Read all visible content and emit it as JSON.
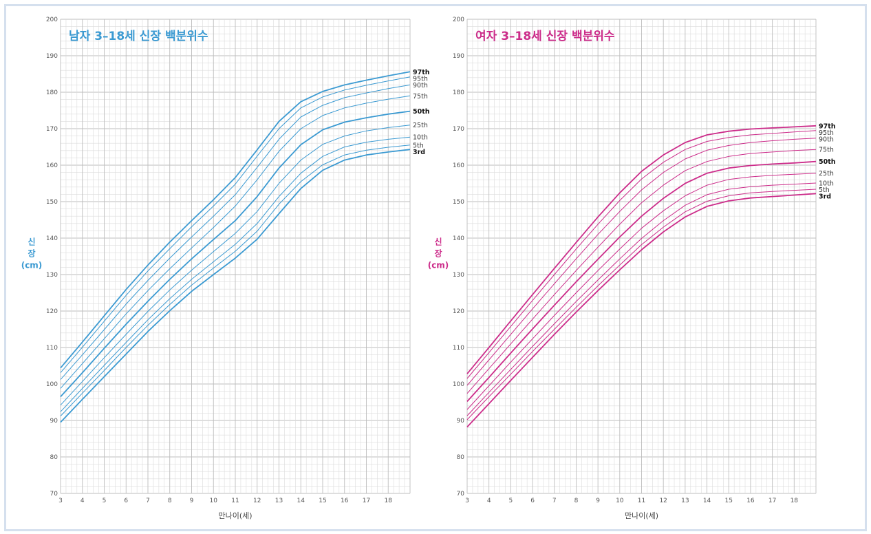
{
  "chart_data": [
    {
      "type": "line",
      "title": "남자 3–18세 신장 백분위수",
      "color": "#3b9ad2",
      "ylabel_lines": [
        "신",
        "장",
        "(cm)"
      ],
      "xlabel": "만나이(세)",
      "xlim": [
        3,
        19
      ],
      "ylim": [
        70,
        200
      ],
      "xticks": [
        3,
        4,
        5,
        6,
        7,
        8,
        9,
        10,
        11,
        12,
        13,
        14,
        15,
        16,
        17,
        18
      ],
      "yticks": [
        70,
        80,
        90,
        100,
        110,
        120,
        130,
        140,
        150,
        160,
        170,
        180,
        190,
        200
      ],
      "grid": true,
      "x": [
        3,
        4,
        5,
        6,
        7,
        8,
        9,
        10,
        11,
        12,
        13,
        14,
        15,
        16,
        17,
        18,
        19
      ],
      "series": [
        {
          "name": "97th",
          "bold": true,
          "values": [
            104.4,
            111.5,
            118.7,
            125.9,
            132.6,
            138.9,
            144.8,
            150.5,
            156.6,
            164.2,
            172.0,
            177.4,
            180.2,
            182.0,
            183.3,
            184.5,
            185.6
          ]
        },
        {
          "name": "95th",
          "bold": false,
          "values": [
            103.1,
            110.1,
            117.2,
            124.3,
            131.0,
            137.1,
            143.1,
            148.8,
            154.8,
            162.5,
            170.0,
            175.7,
            178.7,
            180.6,
            181.9,
            183.1,
            184.2
          ]
        },
        {
          "name": "90th",
          "bold": false,
          "values": [
            101.2,
            108.0,
            114.9,
            121.9,
            128.4,
            134.5,
            140.3,
            146.0,
            151.9,
            159.4,
            167.1,
            173.2,
            176.4,
            178.5,
            179.8,
            181.0,
            182.0
          ]
        },
        {
          "name": "75th",
          "bold": false,
          "values": [
            98.8,
            105.6,
            112.4,
            119.2,
            125.6,
            131.6,
            137.3,
            142.9,
            148.8,
            156.0,
            163.8,
            170.0,
            173.6,
            175.7,
            177.0,
            178.1,
            179.0
          ]
        },
        {
          "name": "50th",
          "bold": true,
          "values": [
            96.5,
            103.1,
            109.8,
            116.4,
            122.7,
            128.7,
            134.3,
            139.6,
            144.8,
            151.4,
            159.2,
            165.6,
            169.7,
            171.8,
            173.0,
            174.0,
            174.8
          ]
        },
        {
          "name": "25th",
          "bold": false,
          "values": [
            94.2,
            100.7,
            107.2,
            113.6,
            119.9,
            125.8,
            131.2,
            136.3,
            141.3,
            147.3,
            155.0,
            161.4,
            165.7,
            168.0,
            169.4,
            170.3,
            171.0
          ]
        },
        {
          "name": "10th",
          "bold": false,
          "values": [
            92.4,
            98.8,
            105.1,
            111.4,
            117.6,
            123.4,
            128.7,
            133.5,
            138.3,
            144.0,
            151.4,
            157.8,
            162.4,
            165.0,
            166.3,
            167.1,
            167.7
          ]
        },
        {
          "name": "5th",
          "bold": false,
          "values": [
            91.2,
            97.5,
            103.7,
            110.0,
            116.1,
            121.8,
            127.1,
            131.8,
            136.4,
            141.9,
            149.3,
            155.5,
            160.1,
            162.8,
            164.1,
            164.9,
            165.5
          ]
        },
        {
          "name": "3rd",
          "bold": true,
          "values": [
            89.5,
            95.8,
            102.0,
            108.2,
            114.4,
            120.1,
            125.4,
            130.0,
            134.5,
            139.7,
            146.7,
            153.6,
            158.6,
            161.4,
            162.8,
            163.6,
            164.3
          ]
        }
      ]
    },
    {
      "type": "line",
      "title": "여자 3–18세 신장 백분위수",
      "color": "#cc2c8a",
      "ylabel_lines": [
        "신",
        "장",
        "(cm)"
      ],
      "xlabel": "만나이(세)",
      "xlim": [
        3,
        19
      ],
      "ylim": [
        70,
        200
      ],
      "xticks": [
        3,
        4,
        5,
        6,
        7,
        8,
        9,
        10,
        11,
        12,
        13,
        14,
        15,
        16,
        17,
        18
      ],
      "yticks": [
        70,
        80,
        90,
        100,
        110,
        120,
        130,
        140,
        150,
        160,
        170,
        180,
        190,
        200
      ],
      "grid": true,
      "x": [
        3,
        4,
        5,
        6,
        7,
        8,
        9,
        10,
        11,
        12,
        13,
        14,
        15,
        16,
        17,
        18,
        19
      ],
      "series": [
        {
          "name": "97th",
          "bold": true,
          "values": [
            102.8,
            110.0,
            117.3,
            124.5,
            131.7,
            138.8,
            145.8,
            152.4,
            158.3,
            162.8,
            166.2,
            168.3,
            169.3,
            169.9,
            170.2,
            170.5,
            170.8
          ]
        },
        {
          "name": "95th",
          "bold": false,
          "values": [
            101.5,
            108.6,
            115.8,
            122.9,
            130.0,
            137.0,
            143.8,
            150.3,
            156.2,
            160.8,
            164.3,
            166.5,
            167.6,
            168.3,
            168.7,
            169.1,
            169.5
          ]
        },
        {
          "name": "90th",
          "bold": false,
          "values": [
            99.6,
            106.6,
            113.6,
            120.6,
            127.5,
            134.3,
            141.0,
            147.3,
            153.2,
            158.0,
            161.7,
            164.1,
            165.4,
            166.2,
            166.7,
            167.1,
            167.4
          ]
        },
        {
          "name": "75th",
          "bold": false,
          "values": [
            97.4,
            104.2,
            111.0,
            117.8,
            124.5,
            131.1,
            137.5,
            143.8,
            149.7,
            154.5,
            158.5,
            161.0,
            162.4,
            163.2,
            163.6,
            164.0,
            164.3
          ]
        },
        {
          "name": "50th",
          "bold": true,
          "values": [
            95.2,
            101.8,
            108.5,
            115.1,
            121.6,
            128.0,
            134.2,
            140.3,
            146.0,
            150.9,
            155.0,
            157.8,
            159.2,
            159.9,
            160.3,
            160.6,
            161.0
          ]
        },
        {
          "name": "25th",
          "bold": false,
          "values": [
            93.0,
            99.5,
            106.0,
            112.4,
            118.8,
            125.0,
            131.1,
            137.0,
            142.7,
            147.5,
            151.6,
            154.5,
            156.1,
            156.8,
            157.2,
            157.5,
            157.8
          ]
        },
        {
          "name": "10th",
          "bold": false,
          "values": [
            91.3,
            97.7,
            104.0,
            110.3,
            116.5,
            122.6,
            128.5,
            134.3,
            139.9,
            144.8,
            149.0,
            151.9,
            153.4,
            154.1,
            154.5,
            154.8,
            155.1
          ]
        },
        {
          "name": "5th",
          "bold": false,
          "values": [
            90.2,
            96.5,
            102.7,
            108.9,
            115.0,
            121.0,
            126.9,
            132.6,
            138.2,
            143.0,
            147.2,
            150.1,
            151.6,
            152.4,
            152.8,
            153.1,
            153.4
          ]
        },
        {
          "name": "3rd",
          "bold": true,
          "values": [
            88.2,
            94.6,
            101.0,
            107.3,
            113.6,
            119.7,
            125.6,
            131.3,
            136.8,
            141.7,
            145.8,
            148.7,
            150.2,
            151.0,
            151.4,
            151.8,
            152.2
          ]
        }
      ]
    }
  ]
}
